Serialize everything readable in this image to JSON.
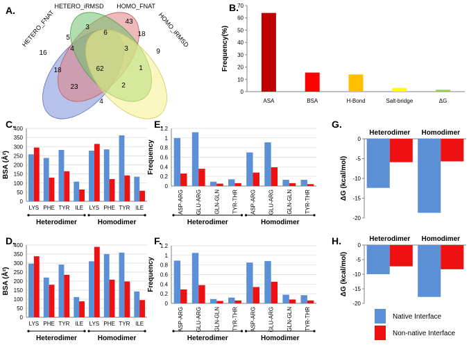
{
  "colors": {
    "native": "#5b8fd6",
    "nonnative": "#ee1111",
    "axis": "#808080",
    "grid": "#d9d9d9"
  },
  "panel_labels": {
    "a": "A.",
    "b": "B.",
    "c": "C.",
    "d": "D.",
    "e": "E.",
    "f": "F.",
    "g": "G.",
    "h": "H."
  },
  "chart_data": [
    {
      "id": "A",
      "type": "venn",
      "sets": [
        "HETERO_FNAT",
        "HETERO_iRMSD",
        "HOMO_FNAT",
        "HOMO_iRMSD"
      ],
      "set_colors": [
        "#7b8fd9",
        "#e07f7f",
        "#6fc26f",
        "#f4f18a"
      ],
      "regions": [
        {
          "sets": [
            "HETERO_FNAT"
          ],
          "value": 16
        },
        {
          "sets": [
            "HETERO_iRMSD"
          ],
          "value": 3
        },
        {
          "sets": [
            "HOMO_FNAT"
          ],
          "value": 43
        },
        {
          "sets": [
            "HOMO_iRMSD"
          ],
          "value": 9
        },
        {
          "sets": [
            "HETERO_FNAT",
            "HETERO_iRMSD"
          ],
          "value": 5
        },
        {
          "sets": [
            "HETERO_iRMSD",
            "HOMO_FNAT"
          ],
          "value": 6
        },
        {
          "sets": [
            "HOMO_FNAT",
            "HOMO_iRMSD"
          ],
          "value": 18
        },
        {
          "sets": [
            "HETERO_FNAT",
            "HETERO_iRMSD",
            "HOMO_FNAT"
          ],
          "value": 4
        },
        {
          "sets": [
            "HETERO_iRMSD",
            "HOMO_FNAT",
            "HOMO_iRMSD"
          ],
          "value": 3
        },
        {
          "sets": [
            "HETERO_FNAT",
            "HOMO_FNAT"
          ],
          "value": 18
        },
        {
          "sets": [
            "HETERO_FNAT",
            "HETERO_iRMSD",
            "HOMO_FNAT",
            "HOMO_iRMSD"
          ],
          "value": 62
        },
        {
          "sets": [
            "HETERO_iRMSD",
            "HOMO_iRMSD"
          ],
          "value": 1
        },
        {
          "sets": [
            "HETERO_FNAT",
            "HOMO_FNAT",
            "HOMO_iRMSD"
          ],
          "value": 23
        },
        {
          "sets": [
            "HETERO_FNAT",
            "HETERO_iRMSD",
            "HOMO_iRMSD"
          ],
          "value": 2
        },
        {
          "sets": [
            "HETERO_FNAT",
            "HOMO_iRMSD"
          ],
          "value": 4
        }
      ]
    },
    {
      "id": "B",
      "type": "bar",
      "categories": [
        "ASA",
        "BSA",
        "H-Bond",
        "Salt-bridge",
        "ΔG"
      ],
      "values": [
        64,
        15.5,
        14,
        3,
        1.5
      ],
      "bar_colors": [
        "#c00000",
        "#ff0000",
        "#ffc000",
        "#ffff00",
        "#92d050"
      ],
      "ylabel": "Frequency(%)",
      "ylim": [
        0,
        70
      ],
      "yticks": [
        0,
        10,
        20,
        30,
        40,
        50,
        60,
        70
      ],
      "grid": false
    },
    {
      "id": "C",
      "type": "bar",
      "categories": [
        "LYS",
        "PHE",
        "TYR",
        "ILE",
        "LYS",
        "PHE",
        "TYR",
        "ILE"
      ],
      "groups": [
        "Heterodimer",
        "Homodimer"
      ],
      "series": [
        {
          "values": [
            258,
            238,
            282,
            108,
            278,
            285,
            362,
            135
          ]
        },
        {
          "values": [
            295,
            130,
            165,
            65,
            315,
            122,
            142,
            58
          ]
        }
      ],
      "ylabel": "BSA (Å²)",
      "ylim": [
        0,
        400
      ],
      "yticks": [
        0,
        50,
        100,
        150,
        200,
        250,
        300,
        350,
        400
      ],
      "grid": true
    },
    {
      "id": "D",
      "type": "bar",
      "categories": [
        "LYS",
        "PHE",
        "TYR",
        "ILE",
        "LYS",
        "PHE",
        "TYR",
        "ILE"
      ],
      "groups": [
        "Heterodimer",
        "Homodimer"
      ],
      "series": [
        {
          "values": [
            297,
            220,
            292,
            112,
            310,
            350,
            358,
            143
          ]
        },
        {
          "values": [
            338,
            180,
            235,
            88,
            390,
            208,
            198,
            95
          ]
        }
      ],
      "ylabel": "BSA (Å²)",
      "ylim": [
        0,
        400
      ],
      "yticks": [
        0,
        50,
        100,
        150,
        200,
        250,
        300,
        350,
        400
      ],
      "grid": true
    },
    {
      "id": "E",
      "type": "bar",
      "categories": [
        "ASP-ARG",
        "GLU-ARG",
        "GLN-GLN",
        "TYR-THR",
        "ASP-ARG",
        "GLU-ARG",
        "GLN-GLN",
        "TYR-THR"
      ],
      "groups": [
        "Heterodimer",
        "Homodimer"
      ],
      "series": [
        {
          "values": [
            1.0,
            1.12,
            0.09,
            0.14,
            0.7,
            0.91,
            0.13,
            0.13
          ]
        },
        {
          "values": [
            0.26,
            0.36,
            0.05,
            0.06,
            0.28,
            0.39,
            0.06,
            0.04
          ]
        }
      ],
      "ylabel": "Frequency",
      "ylim": [
        0,
        1.2
      ],
      "yticks": [
        0,
        0.2,
        0.4,
        0.6,
        0.8,
        1,
        1.2
      ],
      "ytick_labels": [
        "0",
        "0.2",
        "0.4",
        "0.6",
        "0.8",
        "1",
        "1.2"
      ],
      "grid": true
    },
    {
      "id": "F",
      "type": "bar",
      "categories": [
        "ASP-ARG",
        "GLU-ARG",
        "GLN-GLN",
        "TYR-THR",
        "ASP-ARG",
        "GLU-ARG",
        "GLN-GLN",
        "TYR-THR"
      ],
      "groups": [
        "Heterodimer",
        "Homodimer"
      ],
      "series": [
        {
          "values": [
            0.89,
            1.05,
            0.09,
            0.12,
            0.85,
            0.88,
            0.18,
            0.17
          ]
        },
        {
          "values": [
            0.29,
            0.38,
            0.05,
            0.06,
            0.34,
            0.45,
            0.08,
            0.06
          ]
        }
      ],
      "ylabel": "Frequency",
      "ylim": [
        0,
        1.2
      ],
      "yticks": [
        0,
        0.2,
        0.4,
        0.6,
        0.8,
        1,
        1.2
      ],
      "ytick_labels": [
        "0",
        "0.2",
        "0.4",
        "0.6",
        "0.8",
        "1",
        "1.2"
      ],
      "grid": true
    },
    {
      "id": "G",
      "type": "bar",
      "categories": [
        "Heterodimer",
        "Homodimer"
      ],
      "series": [
        {
          "name": "Native Interface",
          "values": [
            -12.4,
            -18.7
          ]
        },
        {
          "name": "Non-native Interface",
          "values": [
            -5.9,
            -5.7
          ]
        }
      ],
      "ylabel": "ΔG (kcal/mol)",
      "ylim": [
        -20,
        0
      ],
      "yticks": [
        0,
        -5,
        -10,
        -15,
        -20
      ],
      "grid": false
    },
    {
      "id": "H",
      "type": "bar",
      "categories": [
        "Heterodimer",
        "Homodimer"
      ],
      "series": [
        {
          "name": "Native Interface",
          "values": [
            -10,
            -17.8
          ]
        },
        {
          "name": "Non-native Interface",
          "values": [
            -7.3,
            -8.3
          ]
        }
      ],
      "ylabel": "ΔG (kcal/mol)",
      "ylim": [
        -20,
        0
      ],
      "yticks": [
        0,
        -5,
        -10,
        -15,
        -20
      ],
      "grid": false
    }
  ],
  "legend": {
    "items": [
      "Native Interface",
      "Non-native Interface"
    ],
    "placement": "bottom-right"
  }
}
